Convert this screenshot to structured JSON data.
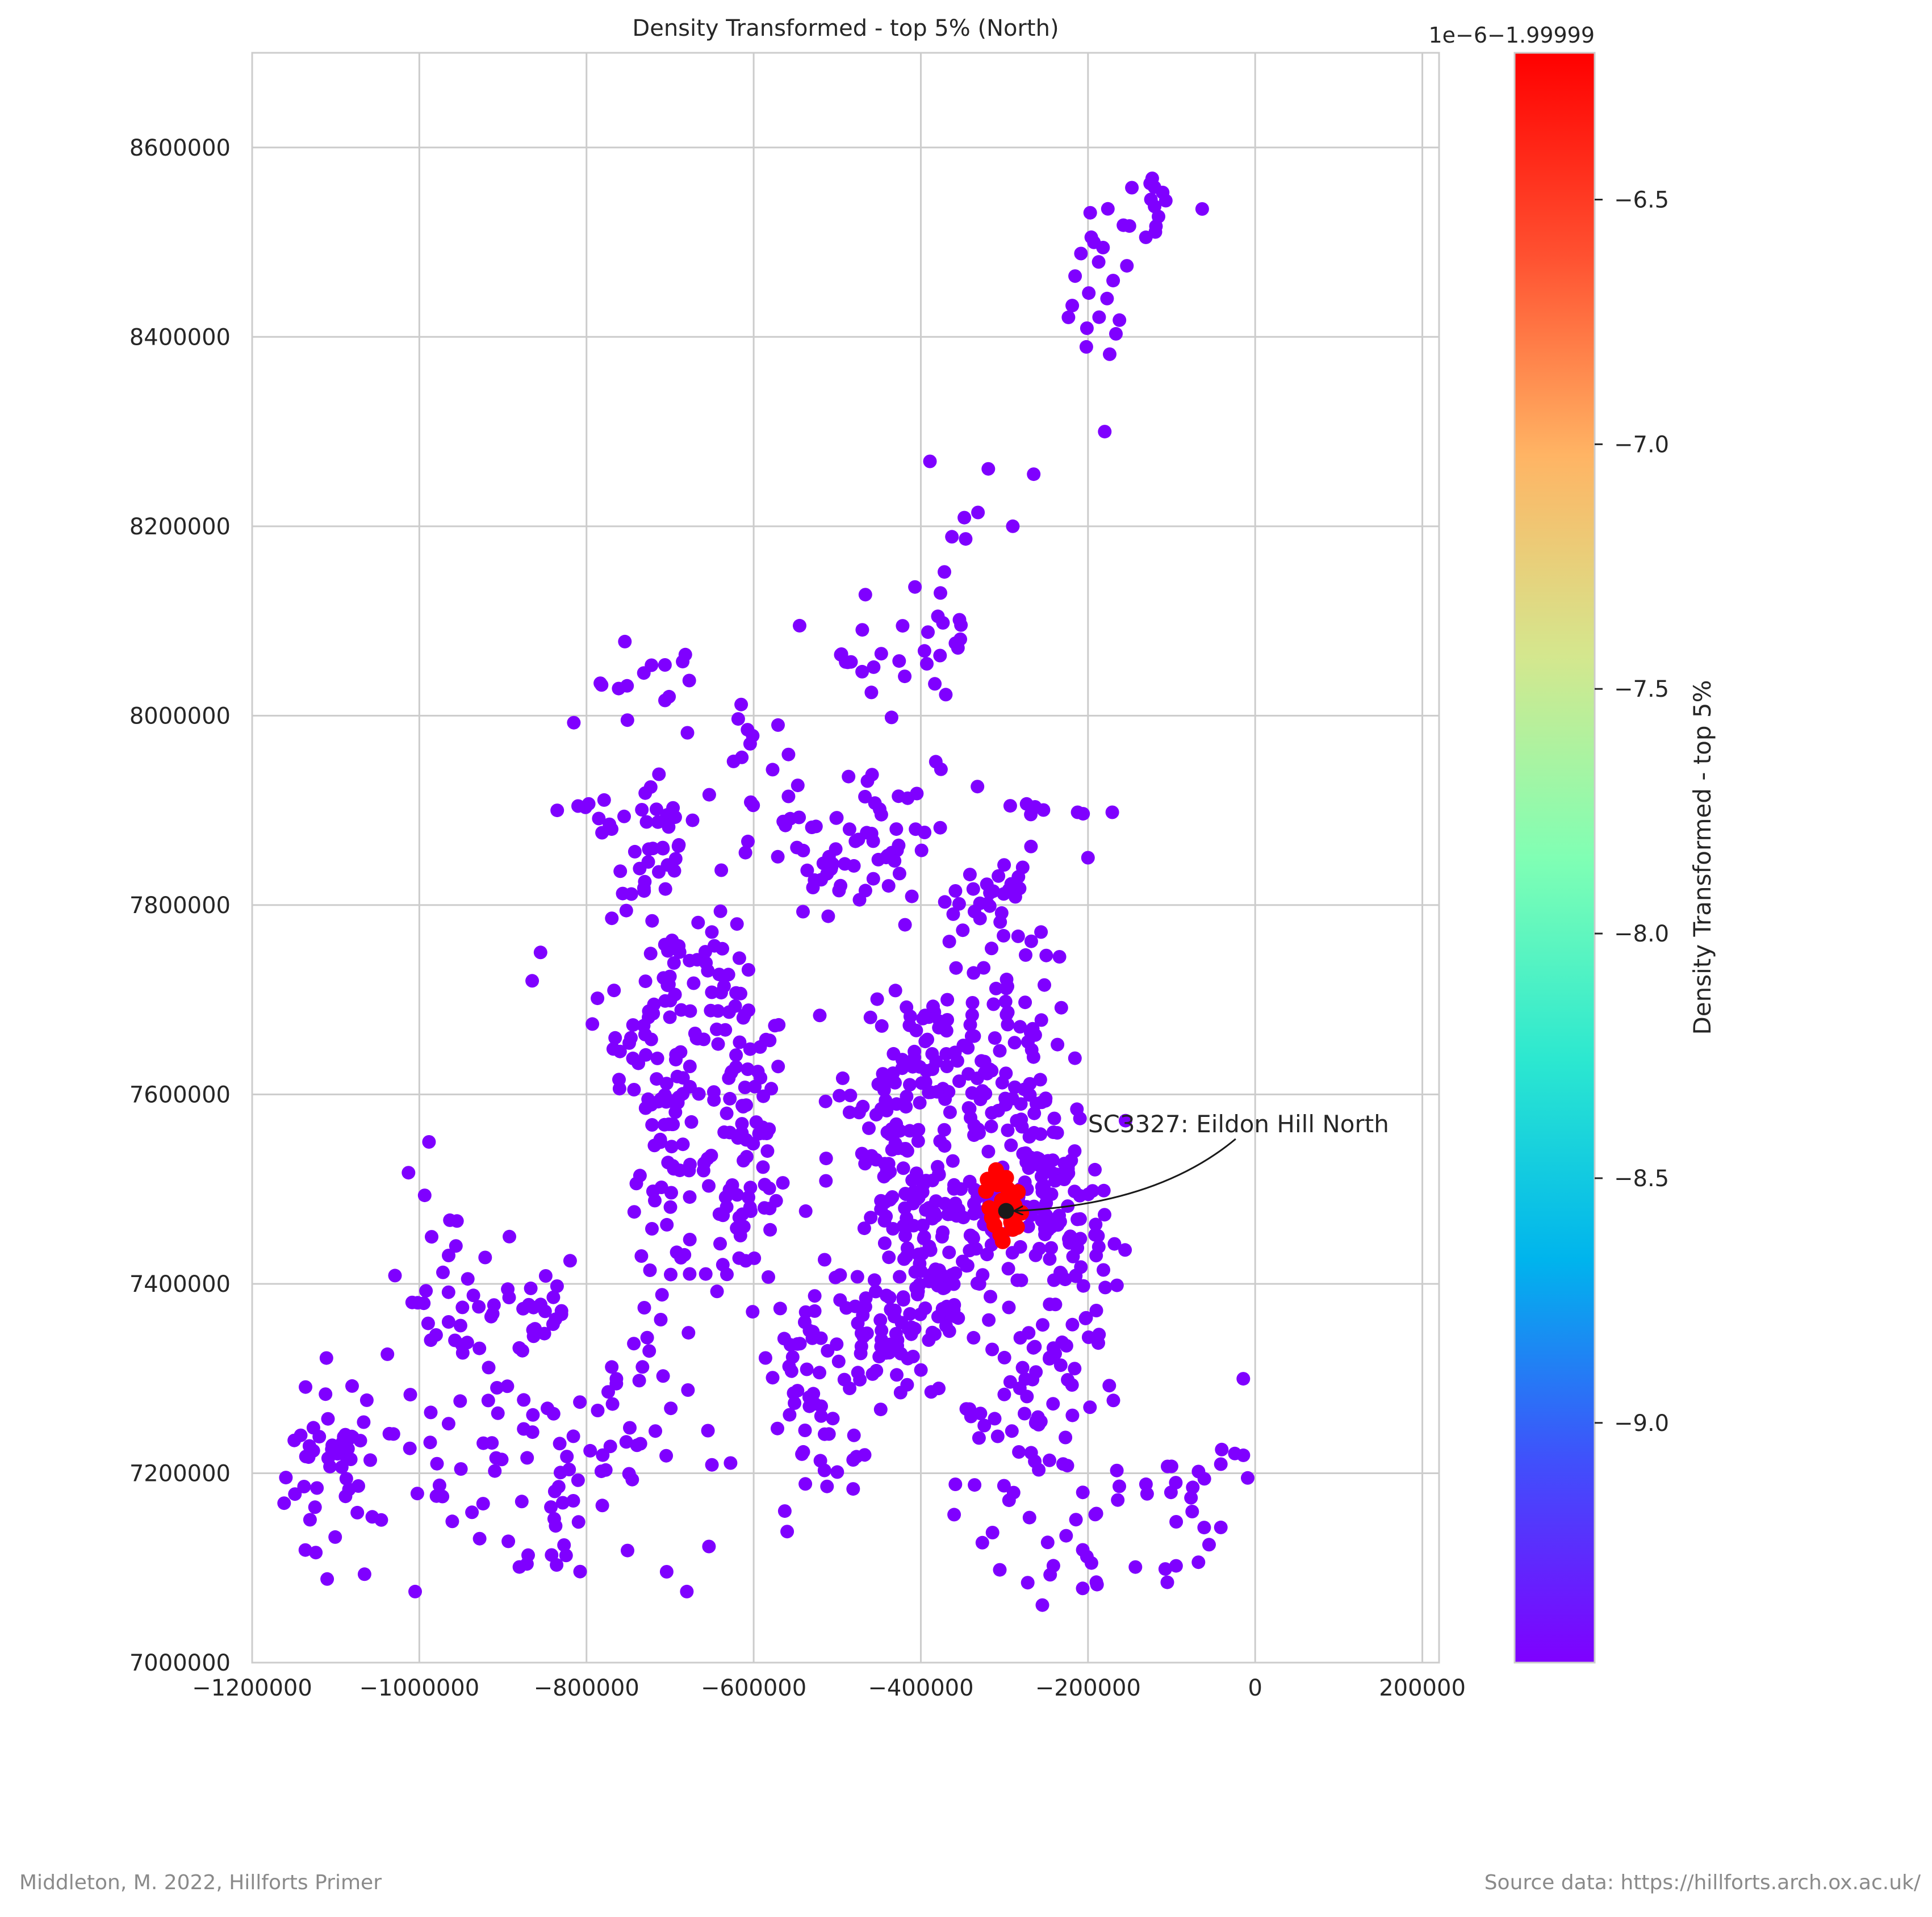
{
  "chart_data": {
    "type": "scatter",
    "title": "Density Transformed - top 5% (North)",
    "xlabel": "",
    "ylabel": "",
    "xlim": [
      -1200000,
      220000
    ],
    "ylim": [
      7000000,
      8700000
    ],
    "xticks": [
      -1200000,
      -1000000,
      -800000,
      -600000,
      -400000,
      -200000,
      0,
      200000
    ],
    "xtick_labels": [
      "−1200000",
      "−1000000",
      "−800000",
      "−600000",
      "−400000",
      "−200000",
      "0",
      "200000"
    ],
    "yticks": [
      7000000,
      7200000,
      7400000,
      7600000,
      7800000,
      8000000,
      8200000,
      8400000,
      8600000
    ],
    "ytick_labels": [
      "7000000",
      "7200000",
      "7400000",
      "7600000",
      "7800000",
      "8000000",
      "8200000",
      "8400000",
      "8600000"
    ],
    "grid": true,
    "colorbar": {
      "label": "Density Transformed - top 5%",
      "offset_text": "1e−6−1.99999",
      "colormap": "rainbow",
      "range": [
        -9.49,
        -6.2
      ],
      "ticks": [
        -9.0,
        -8.5,
        -8.0,
        -7.5,
        -7.0,
        -6.5
      ],
      "tick_labels": [
        "−9.0",
        "−8.5",
        "−8.0",
        "−7.5",
        "−7.0",
        "−6.5"
      ]
    },
    "colors": {
      "low": "#7f00ff",
      "high": "#ff0000",
      "highlight": "#1a1a1a"
    },
    "annotation": {
      "text": "SC3327: Eildon Hill North",
      "point": [
        -298000,
        7477000
      ],
      "text_anchor_point": [
        -200000,
        7565000
      ]
    },
    "background_color_value": -9.45,
    "clusters": [
      {
        "cx": -1100000,
        "cy": 7200000,
        "sx": 30000,
        "sy": 60000,
        "n": 40
      },
      {
        "cx": -1080000,
        "cy": 7230000,
        "sx": 30000,
        "sy": 8000,
        "n": 14
      },
      {
        "cx": -960000,
        "cy": 7300000,
        "sx": 45000,
        "sy": 100000,
        "n": 60
      },
      {
        "cx": -880000,
        "cy": 7380000,
        "sx": 40000,
        "sy": 30000,
        "n": 22
      },
      {
        "cx": -830000,
        "cy": 7190000,
        "sx": 45000,
        "sy": 70000,
        "n": 35
      },
      {
        "cx": -740000,
        "cy": 7250000,
        "sx": 50000,
        "sy": 100000,
        "n": 40
      },
      {
        "cx": -700000,
        "cy": 7680000,
        "sx": 30000,
        "sy": 90000,
        "n": 70
      },
      {
        "cx": -700000,
        "cy": 7520000,
        "sx": 25000,
        "sy": 50000,
        "n": 40
      },
      {
        "cx": -720000,
        "cy": 7860000,
        "sx": 25000,
        "sy": 40000,
        "n": 30
      },
      {
        "cx": -640000,
        "cy": 7720000,
        "sx": 30000,
        "sy": 60000,
        "n": 22
      },
      {
        "cx": -610000,
        "cy": 7580000,
        "sx": 25000,
        "sy": 60000,
        "n": 55
      },
      {
        "cx": -610000,
        "cy": 7450000,
        "sx": 30000,
        "sy": 40000,
        "n": 30
      },
      {
        "cx": -530000,
        "cy": 7330000,
        "sx": 25000,
        "sy": 40000,
        "n": 40
      },
      {
        "cx": -520000,
        "cy": 7200000,
        "sx": 30000,
        "sy": 30000,
        "n": 15
      },
      {
        "cx": -450000,
        "cy": 7340000,
        "sx": 30000,
        "sy": 30000,
        "n": 45
      },
      {
        "cx": -430000,
        "cy": 7530000,
        "sx": 40000,
        "sy": 60000,
        "n": 70
      },
      {
        "cx": -380000,
        "cy": 7400000,
        "sx": 40000,
        "sy": 40000,
        "n": 80
      },
      {
        "cx": -390000,
        "cy": 7640000,
        "sx": 50000,
        "sy": 40000,
        "n": 80
      },
      {
        "cx": -370000,
        "cy": 7480000,
        "sx": 40000,
        "sy": 20000,
        "n": 50
      },
      {
        "cx": -520000,
        "cy": 7850000,
        "sx": 40000,
        "sy": 40000,
        "n": 40
      },
      {
        "cx": -420000,
        "cy": 7860000,
        "sx": 45000,
        "sy": 50000,
        "n": 35
      },
      {
        "cx": -310000,
        "cy": 7800000,
        "sx": 25000,
        "sy": 30000,
        "n": 30
      },
      {
        "cx": -280000,
        "cy": 7680000,
        "sx": 30000,
        "sy": 40000,
        "n": 30
      },
      {
        "cx": -260000,
        "cy": 7500000,
        "sx": 40000,
        "sy": 60000,
        "n": 120
      },
      {
        "cx": -210000,
        "cy": 7420000,
        "sx": 25000,
        "sy": 50000,
        "n": 40
      },
      {
        "cx": -250000,
        "cy": 7280000,
        "sx": 40000,
        "sy": 50000,
        "n": 30
      },
      {
        "cx": -180000,
        "cy": 7120000,
        "sx": 70000,
        "sy": 60000,
        "n": 35
      },
      {
        "cx": -300000,
        "cy": 7200000,
        "sx": 40000,
        "sy": 60000,
        "n": 25
      },
      {
        "cx": -60000,
        "cy": 7170000,
        "sx": 40000,
        "sy": 50000,
        "n": 12
      },
      {
        "cx": -600000,
        "cy": 7980000,
        "sx": 25000,
        "sy": 30000,
        "n": 10
      },
      {
        "cx": -450000,
        "cy": 8060000,
        "sx": 40000,
        "sy": 25000,
        "n": 15
      },
      {
        "cx": -360000,
        "cy": 8100000,
        "sx": 25000,
        "sy": 70000,
        "n": 22
      },
      {
        "cx": -700000,
        "cy": 8030000,
        "sx": 20000,
        "sy": 35000,
        "n": 10
      },
      {
        "cx": -780000,
        "cy": 8020000,
        "sx": 30000,
        "sy": 20000,
        "n": 6
      },
      {
        "cx": -790000,
        "cy": 7880000,
        "sx": 25000,
        "sy": 30000,
        "n": 8
      },
      {
        "cx": -750000,
        "cy": 7670000,
        "sx": 30000,
        "sy": 30000,
        "n": 12
      },
      {
        "cx": -260000,
        "cy": 7900000,
        "sx": 30000,
        "sy": 5000,
        "n": 8
      },
      {
        "cx": -190000,
        "cy": 8440000,
        "sx": 25000,
        "sy": 70000,
        "n": 20
      },
      {
        "cx": -120000,
        "cy": 8540000,
        "sx": 25000,
        "sy": 25000,
        "n": 16
      }
    ],
    "singles": [
      [
        -835000,
        7900000
      ],
      [
        -865000,
        7720000
      ],
      [
        -855000,
        7750000
      ],
      [
        -265000,
        8255000
      ],
      [
        -290000,
        8200000
      ],
      [
        -180000,
        8300000
      ],
      [
        -200000,
        7850000
      ],
      [
        -545000,
        8095000
      ],
      [
        -495000,
        8065000
      ],
      [
        -460000,
        7470000
      ],
      [
        -620000,
        7780000
      ],
      [
        -9000,
        7195000
      ],
      [
        -190000,
        7085000
      ],
      [
        -1005000,
        7075000
      ],
      [
        -680000,
        7075000
      ],
      [
        -480000,
        7240000
      ],
      [
        -40000,
        7225000
      ],
      [
        -95000,
        7190000
      ]
    ],
    "red_points": [
      [
        -300000,
        7477000
      ],
      [
        -308000,
        7505000
      ],
      [
        -318000,
        7480000
      ],
      [
        -290000,
        7458000
      ],
      [
        -312000,
        7462000
      ],
      [
        -284000,
        7497000
      ],
      [
        -298000,
        7512000
      ],
      [
        -322000,
        7498000
      ],
      [
        -302000,
        7445000
      ],
      [
        -280000,
        7475000
      ],
      [
        -295000,
        7490000
      ],
      [
        -310000,
        7520000
      ],
      [
        -292000,
        7465000
      ],
      [
        -315000,
        7470000
      ],
      [
        -288000,
        7483000
      ],
      [
        -305000,
        7452000
      ],
      [
        -320000,
        7510000
      ],
      [
        -296000,
        7500000
      ],
      [
        -285000,
        7460000
      ],
      [
        -303000,
        7488000
      ]
    ]
  },
  "footer": {
    "left": "Middleton, M. 2022, Hillforts Primer",
    "right": "Source data: https://hillforts.arch.ox.ac.uk/"
  }
}
